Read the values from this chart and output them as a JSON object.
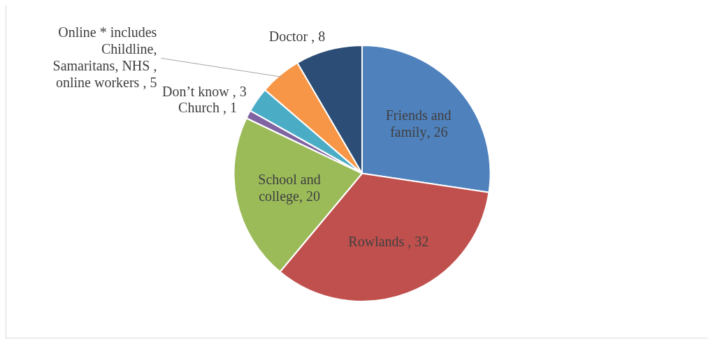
{
  "chart_data": {
    "type": "pie",
    "categories": [
      "Friends and family",
      "Rowlands ",
      "School and college",
      "Church ",
      "Don’t know ",
      "Online * includes Childline, Samaritans, NHS , online workers ",
      "Doctor "
    ],
    "values": [
      26,
      32,
      20,
      1,
      3,
      5,
      8
    ],
    "colors": [
      "#4f81bd",
      "#c0504d",
      "#9bbb59",
      "#8064a2",
      "#4bacc6",
      "#f79646",
      "#2c4d75"
    ],
    "value_labels": [
      ", 26",
      ", 32",
      ", 20",
      ", 1",
      ", 3",
      ", 5",
      ", 8"
    ],
    "legend": false
  }
}
